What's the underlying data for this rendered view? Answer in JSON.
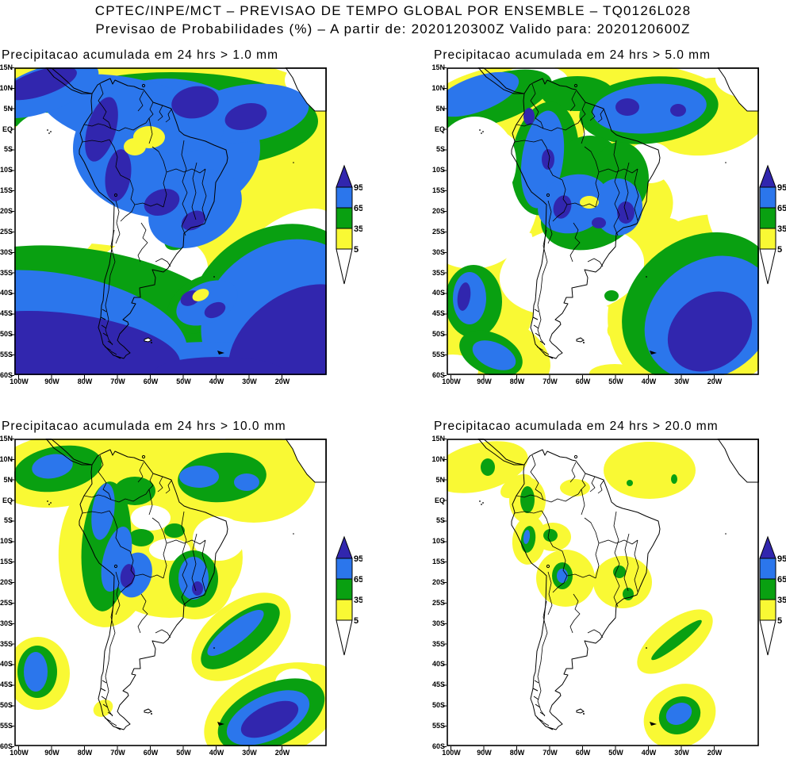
{
  "header": {
    "line1": "CPTEC/INPE/MCT – PREVISAO DE TEMPO GLOBAL POR ENSEMBLE – TQ0126L028",
    "line2": "Previsao de Probabilidades (%) –  A partir de: 2020120300Z  Valido para: 2020120600Z"
  },
  "panels": [
    {
      "title": "Precipitacao acumulada em 24 hrs > 1.0 mm",
      "threshold_mm": 1.0
    },
    {
      "title": "Precipitacao acumulada em 24 hrs > 5.0 mm",
      "threshold_mm": 5.0
    },
    {
      "title": "Precipitacao acumulada em 24 hrs > 10.0 mm",
      "threshold_mm": 10.0
    },
    {
      "title": "Precipitacao acumulada em 24 hrs > 20.0 mm",
      "threshold_mm": 20.0
    }
  ],
  "axes": {
    "lat": [
      "15N",
      "10N",
      "5N",
      "EQ",
      "5S",
      "10S",
      "15S",
      "20S",
      "25S",
      "30S",
      "35S",
      "40S",
      "45S",
      "50S",
      "55S",
      "60S"
    ],
    "lon": [
      "100W",
      "90W",
      "80W",
      "70W",
      "60W",
      "50W",
      "40W",
      "30W",
      "20W"
    ]
  },
  "colorbar": {
    "labels": [
      "95",
      "65",
      "35",
      "5"
    ],
    "units": "%"
  },
  "palette": {
    "prob_gt_95": "#3126ae",
    "prob_65_95": "#2b76ec",
    "prob_35_65": "#09a011",
    "prob_5_35": "#f9f934",
    "prob_lt_5": "#ffffff",
    "outline": "#000000"
  },
  "chart_data": {
    "type": "heatmap",
    "subtype": "filled-contour probability maps (2x2 panel ensemble product)",
    "title": "CPTEC/INPE/MCT – PREVISAO DE TEMPO GLOBAL POR ENSEMBLE – TQ0126L028",
    "subtitle": "Previsao de Probabilidades (%) – A partir de: 2020120300Z Valido para: 2020120600Z",
    "model": "TQ0126L028",
    "init_time": "2020120300Z",
    "valid_time": "2020120600Z",
    "units": "%",
    "levels": [
      5,
      35,
      65,
      95
    ],
    "level_colors": {
      "5-35": "yellow",
      "35-65": "green",
      "65-95": "blue",
      ">95": "dark blue/purple"
    },
    "lat_range": [
      "15N",
      "60S"
    ],
    "lon_range": [
      "100W",
      "20W"
    ],
    "legend_position": "right of each panel, vertical arrow colorbar",
    "grid": false,
    "panels": [
      {
        "threshold_mm": 1.0,
        "summary": ">95% cores over N Colombia/Venezuela, central Amazonia, tropical Atlantic and along 50S-60S; 65-95% covering most of Amazon basin to SE Brazil and a large SE Pacific / South Atlantic storm band (35S-60S) with embedded >95%; <5% over subtropical E Pacific, central Argentina and NE Brazil tip"
      },
      {
        "threshold_mm": 5.0,
        "summary": "65-95% over W Amazonia, tropical N Atlantic (with >95% cores near 10N) and S Brazil/Paraguay; 35-65% fringes; storm band weaker: >95% blobs in SE Pacific (~90W 35-55S) and large 65->95% area in SW Atlantic (20-40W 40-60S); yellow 5-35% over central Brazil"
      },
      {
        "threshold_mm": 10.0,
        "summary": "mostly 5-35% over tropics with 35-95% cells along Andes/W Amazonia (small >95% near Bolivia), near 10N, and S Brazil (~50W 20S); narrow 35-65% band off SE coast (30-40W); blue cells SE Pacific (~95W 40S) and strong >95% core in SW Atlantic (25-35W 50-58S)"
      },
      {
        "threshold_mm": 20.0,
        "summary": "mostly <5%; scattered 5-35% patches (N coast 10-15N, Colombia, Peru/Bolivia border with small 65-95% core, central-east Brazil with 35-65% dots); yellow/green diagonal streak near 30W 30S; isolated cell with 65-95% core near 30W 51S"
      }
    ]
  }
}
